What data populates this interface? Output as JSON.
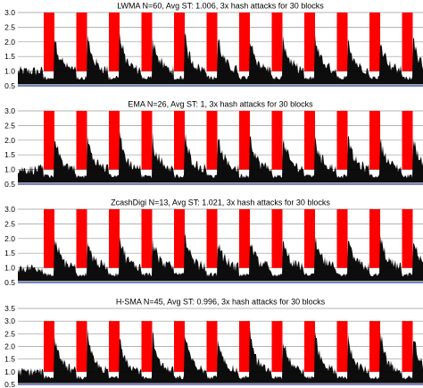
{
  "chart_data": [
    {
      "type": "area",
      "title": "LWMA N=60, Avg ST: 1.006, 3x hash attacks for 30 blocks",
      "y_tick_labels": [
        "0.5",
        "1.0",
        "1.5",
        "2.0",
        "2.5",
        "3.0"
      ],
      "ylim": [
        0.5,
        3.0
      ],
      "grid": true,
      "attack_level": 3.0,
      "attack_count": 13,
      "series": [
        {
          "role": "hash-attack",
          "color": "#ff0000"
        },
        {
          "role": "solvetime",
          "color": "#000000",
          "baseline": 1.0,
          "peak_after_attack": 2.4
        }
      ]
    },
    {
      "type": "area",
      "title": "EMA N=26, Avg ST: 1, 3x hash attacks for 30 blocks",
      "y_tick_labels": [
        "0.5",
        "1.0",
        "1.5",
        "2.0",
        "2.5",
        "3.0"
      ],
      "ylim": [
        0.5,
        3.0
      ],
      "grid": true,
      "attack_level": 3.0,
      "attack_count": 13,
      "series": [
        {
          "role": "hash-attack",
          "color": "#ff0000"
        },
        {
          "role": "solvetime",
          "color": "#000000",
          "baseline": 1.0,
          "peak_after_attack": 2.3
        }
      ]
    },
    {
      "type": "area",
      "title": "ZcashDigi N=13, Avg ST: 1.021, 3x hash attacks for 30 blocks",
      "y_tick_labels": [
        "0.5",
        "1.0",
        "1.5",
        "2.0",
        "2.5",
        "3.0"
      ],
      "ylim": [
        0.5,
        3.0
      ],
      "grid": true,
      "attack_level": 3.0,
      "attack_count": 13,
      "series": [
        {
          "role": "hash-attack",
          "color": "#ff0000"
        },
        {
          "role": "solvetime",
          "color": "#000000",
          "baseline": 1.0,
          "peak_after_attack": 2.2
        }
      ]
    },
    {
      "type": "area",
      "title": "H-SMA N=45, Avg ST: 0.996, 3x hash attacks for 30 blocks",
      "y_tick_labels": [
        "0.5",
        "1.0",
        "1.5",
        "2.0",
        "2.5",
        "3.0",
        "3.5"
      ],
      "ylim": [
        0.5,
        3.5
      ],
      "grid": true,
      "attack_level": 3.0,
      "attack_count": 13,
      "series": [
        {
          "role": "hash-attack",
          "color": "#ff0000"
        },
        {
          "role": "solvetime",
          "color": "#000000",
          "baseline": 1.0,
          "peak_after_attack": 2.7
        }
      ]
    }
  ]
}
